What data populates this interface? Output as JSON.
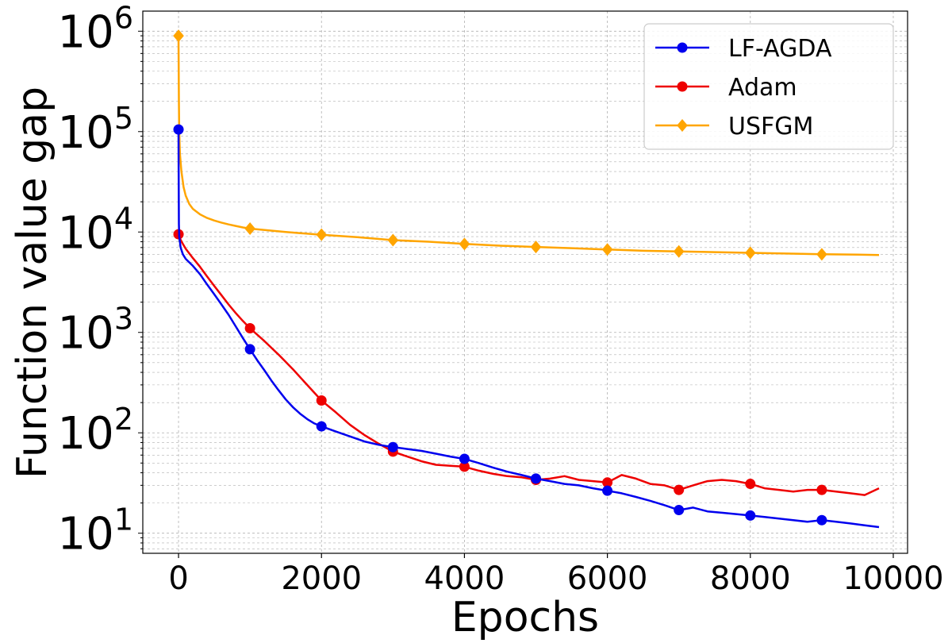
{
  "chart_data": {
    "type": "line",
    "title": "",
    "xlabel": "Epochs",
    "ylabel": "Function value gap",
    "x_ticks": [
      "0",
      "2000",
      "4000",
      "6000",
      "8000",
      "10000"
    ],
    "y_ticks": [
      {
        "base": "10",
        "exp": "1"
      },
      {
        "base": "10",
        "exp": "2"
      },
      {
        "base": "10",
        "exp": "3"
      },
      {
        "base": "10",
        "exp": "4"
      },
      {
        "base": "10",
        "exp": "5"
      },
      {
        "base": "10",
        "exp": "6"
      }
    ],
    "xlim": [
      -500,
      10200
    ],
    "ylim_log10": [
      0.8,
      6.2
    ],
    "yscale": "log",
    "grid": true,
    "legend_position": "top-right",
    "markers_x": [
      0,
      1000,
      2000,
      3000,
      4000,
      5000,
      6000,
      7000,
      8000,
      9000
    ],
    "series": [
      {
        "name": "LF-AGDA",
        "color": "#0000ee",
        "marker": "circle",
        "points": [
          [
            0,
            105000
          ],
          [
            2,
            40000
          ],
          [
            5,
            12000
          ],
          [
            10,
            9000
          ],
          [
            30,
            7000
          ],
          [
            60,
            6000
          ],
          [
            100,
            5400
          ],
          [
            200,
            4600
          ],
          [
            300,
            3800
          ],
          [
            400,
            3000
          ],
          [
            500,
            2400
          ],
          [
            600,
            1900
          ],
          [
            700,
            1500
          ],
          [
            800,
            1150
          ],
          [
            900,
            880
          ],
          [
            1000,
            680
          ],
          [
            1100,
            530
          ],
          [
            1200,
            420
          ],
          [
            1300,
            330
          ],
          [
            1400,
            265
          ],
          [
            1500,
            215
          ],
          [
            1600,
            180
          ],
          [
            1700,
            155
          ],
          [
            1800,
            137
          ],
          [
            1900,
            124
          ],
          [
            2000,
            116
          ],
          [
            2200,
            103
          ],
          [
            2400,
            92
          ],
          [
            2600,
            82
          ],
          [
            2800,
            76
          ],
          [
            3000,
            72
          ],
          [
            3200,
            69
          ],
          [
            3400,
            66
          ],
          [
            3600,
            62
          ],
          [
            3800,
            58
          ],
          [
            4000,
            55
          ],
          [
            4200,
            50
          ],
          [
            4400,
            45
          ],
          [
            4600,
            41
          ],
          [
            4800,
            38
          ],
          [
            5000,
            35
          ],
          [
            5200,
            33
          ],
          [
            5400,
            31
          ],
          [
            5600,
            30
          ],
          [
            5800,
            28
          ],
          [
            6000,
            26.5
          ],
          [
            6200,
            25
          ],
          [
            6400,
            23
          ],
          [
            6600,
            21
          ],
          [
            6800,
            19
          ],
          [
            7000,
            17
          ],
          [
            7200,
            18
          ],
          [
            7400,
            16.5
          ],
          [
            7600,
            16
          ],
          [
            7800,
            15.5
          ],
          [
            8000,
            15
          ],
          [
            8200,
            14.5
          ],
          [
            8400,
            14
          ],
          [
            8600,
            13.5
          ],
          [
            8800,
            13
          ],
          [
            9000,
            13.5
          ],
          [
            9200,
            13
          ],
          [
            9400,
            12.5
          ],
          [
            9600,
            12
          ],
          [
            9800,
            11.5
          ]
        ],
        "marker_values": [
          105000,
          680,
          116,
          72,
          55,
          35,
          26.5,
          17,
          15,
          13.5
        ]
      },
      {
        "name": "Adam",
        "color": "#ee0000",
        "marker": "circle",
        "points": [
          [
            0,
            9500
          ],
          [
            20,
            8600
          ],
          [
            60,
            7600
          ],
          [
            100,
            6800
          ],
          [
            200,
            5500
          ],
          [
            300,
            4500
          ],
          [
            400,
            3600
          ],
          [
            500,
            2900
          ],
          [
            600,
            2350
          ],
          [
            700,
            1900
          ],
          [
            800,
            1560
          ],
          [
            900,
            1300
          ],
          [
            1000,
            1100
          ],
          [
            1200,
            820
          ],
          [
            1400,
            600
          ],
          [
            1600,
            430
          ],
          [
            1800,
            300
          ],
          [
            2000,
            210
          ],
          [
            2200,
            160
          ],
          [
            2400,
            120
          ],
          [
            2600,
            95
          ],
          [
            2800,
            78
          ],
          [
            3000,
            65
          ],
          [
            3200,
            58
          ],
          [
            3400,
            52
          ],
          [
            3600,
            48
          ],
          [
            3800,
            47
          ],
          [
            4000,
            46
          ],
          [
            4200,
            42
          ],
          [
            4400,
            39
          ],
          [
            4600,
            37
          ],
          [
            4800,
            36
          ],
          [
            5000,
            34
          ],
          [
            5200,
            35
          ],
          [
            5400,
            37
          ],
          [
            5600,
            34
          ],
          [
            5800,
            33
          ],
          [
            6000,
            32
          ],
          [
            6200,
            38
          ],
          [
            6400,
            35
          ],
          [
            6600,
            31
          ],
          [
            6800,
            30
          ],
          [
            7000,
            27
          ],
          [
            7200,
            30
          ],
          [
            7400,
            33
          ],
          [
            7600,
            34
          ],
          [
            7800,
            33
          ],
          [
            8000,
            31
          ],
          [
            8200,
            28
          ],
          [
            8400,
            27
          ],
          [
            8600,
            26
          ],
          [
            8800,
            27
          ],
          [
            9000,
            27
          ],
          [
            9200,
            26
          ],
          [
            9400,
            25
          ],
          [
            9600,
            24
          ],
          [
            9800,
            28
          ]
        ],
        "marker_values": [
          9500,
          1100,
          210,
          65,
          46,
          34,
          32,
          27,
          31,
          27
        ]
      },
      {
        "name": "USFGM",
        "color": "#ffa500",
        "marker": "diamond",
        "points": [
          [
            0,
            900000
          ],
          [
            5,
            200000
          ],
          [
            10,
            100000
          ],
          [
            20,
            60000
          ],
          [
            40,
            40000
          ],
          [
            70,
            28000
          ],
          [
            100,
            23000
          ],
          [
            150,
            19000
          ],
          [
            200,
            17000
          ],
          [
            300,
            15000
          ],
          [
            400,
            13800
          ],
          [
            500,
            13000
          ],
          [
            600,
            12400
          ],
          [
            700,
            11900
          ],
          [
            800,
            11500
          ],
          [
            900,
            11100
          ],
          [
            1000,
            10800
          ],
          [
            1500,
            10000
          ],
          [
            2000,
            9400
          ],
          [
            2500,
            8900
          ],
          [
            3000,
            8300
          ],
          [
            3500,
            8000
          ],
          [
            4000,
            7600
          ],
          [
            4500,
            7300
          ],
          [
            5000,
            7100
          ],
          [
            5500,
            6900
          ],
          [
            6000,
            6700
          ],
          [
            6500,
            6500
          ],
          [
            7000,
            6400
          ],
          [
            7500,
            6300
          ],
          [
            8000,
            6200
          ],
          [
            8500,
            6100
          ],
          [
            9000,
            6000
          ],
          [
            9500,
            5950
          ],
          [
            9800,
            5900
          ]
        ],
        "marker_values": [
          900000,
          10800,
          9400,
          8300,
          7600,
          7100,
          6700,
          6400,
          6200,
          6000
        ]
      }
    ]
  }
}
